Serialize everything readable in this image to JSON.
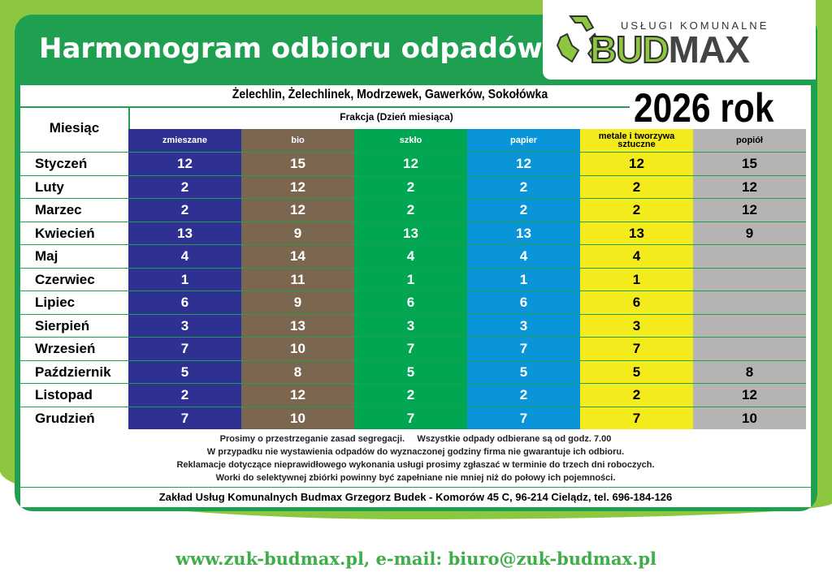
{
  "title": "Harmonogram odbioru odpadów",
  "logo": {
    "subtitle": "USŁUGI KOMUNALNE",
    "brand_a": "BUD",
    "brand_b": "MAX",
    "icon": "recycle-icon"
  },
  "locations": "Żelechlin, Żelechlinek, Modrzewek, Gawerków, Sokołówka",
  "year": "2026 rok",
  "table": {
    "month_header": "Miesiąc",
    "group_header": "Frakcja (Dzień miesiąca)",
    "columns": [
      {
        "label": "zmieszane",
        "color": "#2e3192",
        "text": "#ffffff"
      },
      {
        "label": "bio",
        "color": "#7b6650",
        "text": "#ffffff"
      },
      {
        "label": "szkło",
        "color": "#00a651",
        "text": "#ffffff"
      },
      {
        "label": "papier",
        "color": "#0a95d8",
        "text": "#ffffff"
      },
      {
        "label": "metale i tworzywa sztuczne",
        "color": "#f3eb1b",
        "text": "#000000"
      },
      {
        "label": "popiół",
        "color": "#b5b3b3",
        "text": "#000000"
      }
    ],
    "rows": [
      {
        "month": "Styczeń",
        "values": [
          "12",
          "15",
          "12",
          "12",
          "12",
          "15"
        ]
      },
      {
        "month": "Luty",
        "values": [
          "2",
          "12",
          "2",
          "2",
          "2",
          "12"
        ]
      },
      {
        "month": "Marzec",
        "values": [
          "2",
          "12",
          "2",
          "2",
          "2",
          "12"
        ]
      },
      {
        "month": "Kwiecień",
        "values": [
          "13",
          "9",
          "13",
          "13",
          "13",
          "9"
        ]
      },
      {
        "month": "Maj",
        "values": [
          "4",
          "14",
          "4",
          "4",
          "4",
          ""
        ]
      },
      {
        "month": "Czerwiec",
        "values": [
          "1",
          "11",
          "1",
          "1",
          "1",
          ""
        ]
      },
      {
        "month": "Lipiec",
        "values": [
          "6",
          "9",
          "6",
          "6",
          "6",
          ""
        ]
      },
      {
        "month": "Sierpień",
        "values": [
          "3",
          "13",
          "3",
          "3",
          "3",
          ""
        ]
      },
      {
        "month": "Wrzesień",
        "values": [
          "7",
          "10",
          "7",
          "7",
          "7",
          ""
        ]
      },
      {
        "month": "Październik",
        "values": [
          "5",
          "8",
          "5",
          "5",
          "5",
          "8"
        ]
      },
      {
        "month": "Listopad",
        "values": [
          "2",
          "12",
          "2",
          "2",
          "2",
          "12"
        ]
      },
      {
        "month": "Grudzień",
        "values": [
          "7",
          "10",
          "7",
          "7",
          "7",
          "10"
        ]
      }
    ]
  },
  "notes": [
    "Prosimy o przestrzeganie zasad segregacji.     Wszystkie odpady odbierane są od godz. 7.00",
    "W przypadku nie wystawienia odpadów do wyznaczonej godziny firma nie gwarantuje ich odbioru.",
    "Reklamacje dotyczące nieprawidłowego wykonania usługi prosimy zgłaszać w terminie do trzech dni roboczych.",
    "Worki do selektywnej zbiórki powinny być zapełniane nie mniej niż do połowy ich pojemności."
  ],
  "footer": "Zakład Usług Komunalnych Budmax Grzegorz Budek - Komorów 45 C, 96-214 Cielądz,  tel. 696-184-126",
  "website": "www.zuk-budmax.pl, e-mail: biuro@zuk-budmax.pl"
}
